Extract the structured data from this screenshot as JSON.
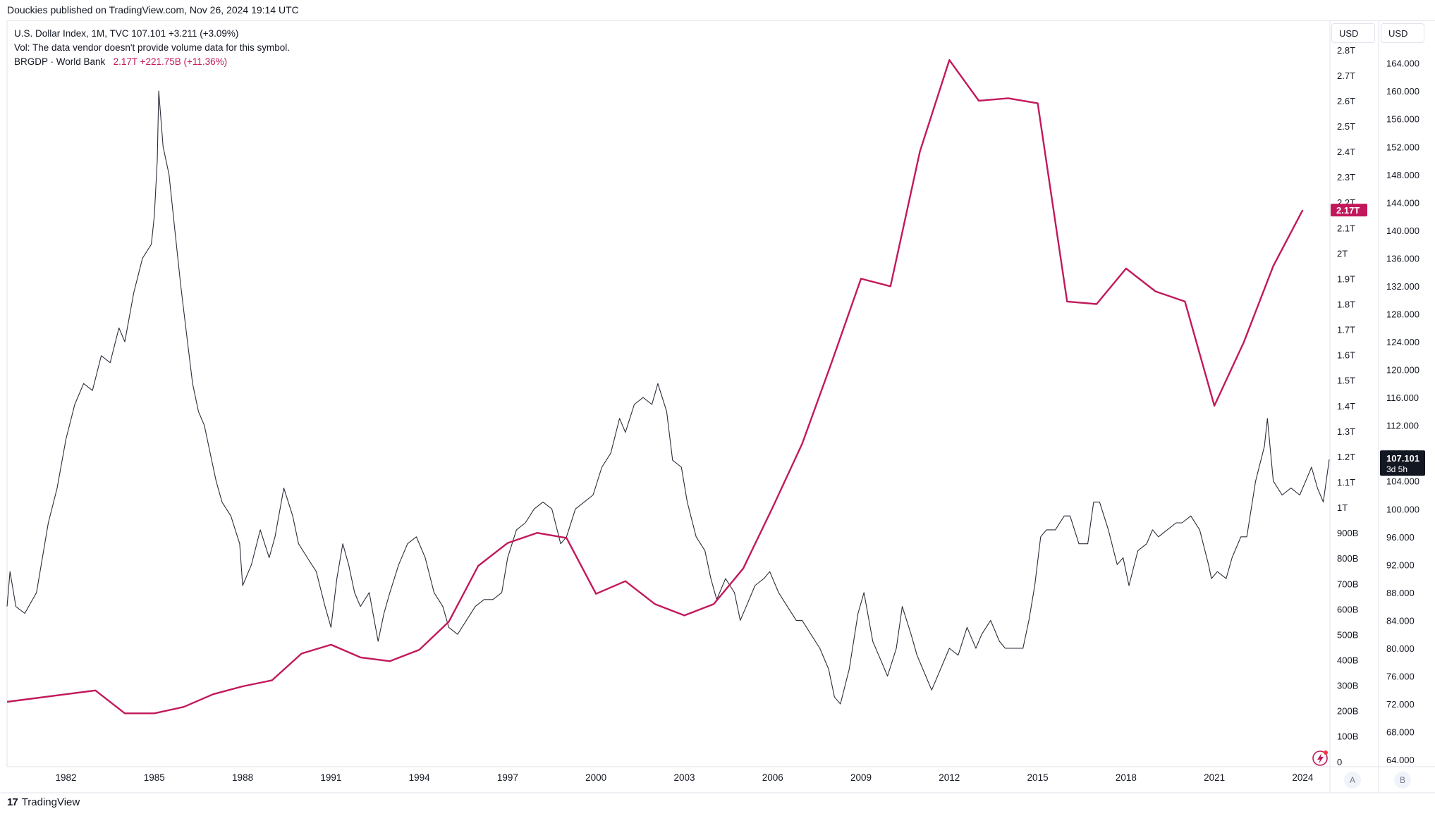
{
  "header": {
    "published": "Douckies published on TradingView.com, Nov 26, 2024 19:14 UTC"
  },
  "legend": {
    "symbol_line": "U.S. Dollar Index, 1M, TVC  107.101  +3.211 (+3.09%)",
    "vol_line": "Vol: The data vendor doesn't provide volume data for this symbol.",
    "brgdp_name": "BRGDP · World Bank",
    "brgdp_values": "2.17T  +221.75B (+11.36%)"
  },
  "axes": {
    "left_currency": "USD",
    "right_currency": "USD",
    "left_ticks": [
      "0",
      "100B",
      "200B",
      "300B",
      "400B",
      "500B",
      "600B",
      "700B",
      "800B",
      "900B",
      "1T",
      "1.1T",
      "1.2T",
      "1.3T",
      "1.4T",
      "1.5T",
      "1.6T",
      "1.7T",
      "1.8T",
      "1.9T",
      "2T",
      "2.1T",
      "2.2T",
      "2.3T",
      "2.4T",
      "2.5T",
      "2.6T",
      "2.7T",
      "2.8T"
    ],
    "right_ticks": [
      "64.000",
      "68.000",
      "72.000",
      "76.000",
      "80.000",
      "84.000",
      "88.000",
      "92.000",
      "96.000",
      "100.000",
      "104.000",
      "108.000",
      "112.000",
      "116.000",
      "120.000",
      "124.000",
      "128.000",
      "132.000",
      "136.000",
      "140.000",
      "144.000",
      "148.000",
      "152.000",
      "156.000",
      "160.000",
      "164.000"
    ],
    "x_ticks": [
      "1982",
      "1985",
      "1988",
      "1991",
      "1994",
      "1997",
      "2000",
      "2003",
      "2006",
      "2009",
      "2012",
      "2015",
      "2018",
      "2021",
      "2024"
    ],
    "scale_buttons": [
      "A",
      "B"
    ]
  },
  "badges": {
    "brgdp_last": "2.17T",
    "dxy_last": "107.101",
    "dxy_countdown": "3d 5h"
  },
  "colors": {
    "brgdp": "#c2185b",
    "dxy": "#2a2e39",
    "badge_dark": "#131722",
    "grid": "#e0e3eb"
  },
  "footer": {
    "brand": "TradingView"
  },
  "chart_data": {
    "type": "line",
    "x_range": [
      1980,
      2024.9
    ],
    "series": [
      {
        "name": "U.S. Dollar Index",
        "axis": "right",
        "ylim": [
          63,
          167
        ],
        "points": [
          [
            1980.0,
            86
          ],
          [
            1980.1,
            91
          ],
          [
            1980.3,
            86
          ],
          [
            1980.6,
            85
          ],
          [
            1981.0,
            88
          ],
          [
            1981.4,
            98
          ],
          [
            1981.7,
            103
          ],
          [
            1982.0,
            110
          ],
          [
            1982.3,
            115
          ],
          [
            1982.6,
            118
          ],
          [
            1982.9,
            117
          ],
          [
            1983.2,
            122
          ],
          [
            1983.5,
            121
          ],
          [
            1983.8,
            126
          ],
          [
            1984.0,
            124
          ],
          [
            1984.3,
            131
          ],
          [
            1984.6,
            136
          ],
          [
            1984.9,
            138
          ],
          [
            1985.0,
            142
          ],
          [
            1985.1,
            150
          ],
          [
            1985.15,
            160
          ],
          [
            1985.3,
            152
          ],
          [
            1985.5,
            148
          ],
          [
            1985.7,
            140
          ],
          [
            1985.9,
            132
          ],
          [
            1986.1,
            125
          ],
          [
            1986.3,
            118
          ],
          [
            1986.5,
            114
          ],
          [
            1986.7,
            112
          ],
          [
            1986.9,
            108
          ],
          [
            1987.1,
            104
          ],
          [
            1987.3,
            101
          ],
          [
            1987.6,
            99
          ],
          [
            1987.9,
            95
          ],
          [
            1988.0,
            89
          ],
          [
            1988.3,
            92
          ],
          [
            1988.6,
            97
          ],
          [
            1988.9,
            93
          ],
          [
            1989.1,
            96
          ],
          [
            1989.4,
            103
          ],
          [
            1989.7,
            99
          ],
          [
            1989.9,
            95
          ],
          [
            1990.2,
            93
          ],
          [
            1990.5,
            91
          ],
          [
            1990.8,
            86
          ],
          [
            1991.0,
            83
          ],
          [
            1991.2,
            90
          ],
          [
            1991.4,
            95
          ],
          [
            1991.6,
            92
          ],
          [
            1991.8,
            88
          ],
          [
            1992.0,
            86
          ],
          [
            1992.3,
            88
          ],
          [
            1992.6,
            81
          ],
          [
            1992.8,
            85
          ],
          [
            1993.0,
            88
          ],
          [
            1993.3,
            92
          ],
          [
            1993.6,
            95
          ],
          [
            1993.9,
            96
          ],
          [
            1994.2,
            93
          ],
          [
            1994.5,
            88
          ],
          [
            1994.8,
            86
          ],
          [
            1995.0,
            83
          ],
          [
            1995.3,
            82
          ],
          [
            1995.6,
            84
          ],
          [
            1995.9,
            86
          ],
          [
            1996.2,
            87
          ],
          [
            1996.5,
            87
          ],
          [
            1996.8,
            88
          ],
          [
            1997.0,
            93
          ],
          [
            1997.3,
            97
          ],
          [
            1997.6,
            98
          ],
          [
            1997.9,
            100
          ],
          [
            1998.2,
            101
          ],
          [
            1998.5,
            100
          ],
          [
            1998.8,
            95
          ],
          [
            1999.0,
            96
          ],
          [
            1999.3,
            100
          ],
          [
            1999.6,
            101
          ],
          [
            1999.9,
            102
          ],
          [
            2000.2,
            106
          ],
          [
            2000.5,
            108
          ],
          [
            2000.8,
            113
          ],
          [
            2001.0,
            111
          ],
          [
            2001.3,
            115
          ],
          [
            2001.6,
            116
          ],
          [
            2001.9,
            115
          ],
          [
            2002.1,
            118
          ],
          [
            2002.4,
            114
          ],
          [
            2002.6,
            107
          ],
          [
            2002.9,
            106
          ],
          [
            2003.1,
            101
          ],
          [
            2003.4,
            96
          ],
          [
            2003.7,
            94
          ],
          [
            2003.9,
            90
          ],
          [
            2004.1,
            87
          ],
          [
            2004.4,
            90
          ],
          [
            2004.7,
            88
          ],
          [
            2004.9,
            84
          ],
          [
            2005.1,
            86
          ],
          [
            2005.4,
            89
          ],
          [
            2005.7,
            90
          ],
          [
            2005.9,
            91
          ],
          [
            2006.2,
            88
          ],
          [
            2006.5,
            86
          ],
          [
            2006.8,
            84
          ],
          [
            2007.0,
            84
          ],
          [
            2007.3,
            82
          ],
          [
            2007.6,
            80
          ],
          [
            2007.9,
            77
          ],
          [
            2008.1,
            73
          ],
          [
            2008.3,
            72
          ],
          [
            2008.6,
            77
          ],
          [
            2008.9,
            85
          ],
          [
            2009.1,
            88
          ],
          [
            2009.4,
            81
          ],
          [
            2009.7,
            78
          ],
          [
            2009.9,
            76
          ],
          [
            2010.2,
            80
          ],
          [
            2010.4,
            86
          ],
          [
            2010.7,
            82
          ],
          [
            2010.9,
            79
          ],
          [
            2011.2,
            76
          ],
          [
            2011.4,
            74
          ],
          [
            2011.7,
            77
          ],
          [
            2012.0,
            80
          ],
          [
            2012.3,
            79
          ],
          [
            2012.6,
            83
          ],
          [
            2012.9,
            80
          ],
          [
            2013.1,
            82
          ],
          [
            2013.4,
            84
          ],
          [
            2013.7,
            81
          ],
          [
            2013.9,
            80
          ],
          [
            2014.2,
            80
          ],
          [
            2014.5,
            80
          ],
          [
            2014.7,
            84
          ],
          [
            2014.9,
            89
          ],
          [
            2015.1,
            96
          ],
          [
            2015.3,
            97
          ],
          [
            2015.6,
            97
          ],
          [
            2015.9,
            99
          ],
          [
            2016.1,
            99
          ],
          [
            2016.4,
            95
          ],
          [
            2016.7,
            95
          ],
          [
            2016.9,
            101
          ],
          [
            2017.1,
            101
          ],
          [
            2017.4,
            97
          ],
          [
            2017.7,
            92
          ],
          [
            2017.9,
            93
          ],
          [
            2018.1,
            89
          ],
          [
            2018.4,
            94
          ],
          [
            2018.7,
            95
          ],
          [
            2018.9,
            97
          ],
          [
            2019.1,
            96
          ],
          [
            2019.4,
            97
          ],
          [
            2019.7,
            98
          ],
          [
            2019.9,
            98
          ],
          [
            2020.2,
            99
          ],
          [
            2020.5,
            97
          ],
          [
            2020.8,
            92
          ],
          [
            2020.9,
            90
          ],
          [
            2021.1,
            91
          ],
          [
            2021.4,
            90
          ],
          [
            2021.6,
            93
          ],
          [
            2021.9,
            96
          ],
          [
            2022.1,
            96
          ],
          [
            2022.4,
            104
          ],
          [
            2022.7,
            109
          ],
          [
            2022.8,
            113
          ],
          [
            2023.0,
            104
          ],
          [
            2023.3,
            102
          ],
          [
            2023.6,
            103
          ],
          [
            2023.9,
            102
          ],
          [
            2024.1,
            104
          ],
          [
            2024.3,
            106
          ],
          [
            2024.5,
            103
          ],
          [
            2024.7,
            101
          ],
          [
            2024.9,
            107.1
          ]
        ]
      },
      {
        "name": "BRGDP · World Bank",
        "axis": "left",
        "ylim": [
          -20,
          2830
        ],
        "points": [
          [
            1980,
            235
          ],
          [
            1982,
            265
          ],
          [
            1983,
            280
          ],
          [
            1984,
            190
          ],
          [
            1985,
            190
          ],
          [
            1986,
            215
          ],
          [
            1987,
            265
          ],
          [
            1988,
            296
          ],
          [
            1989,
            320
          ],
          [
            1990,
            425
          ],
          [
            1991,
            460
          ],
          [
            1992,
            410
          ],
          [
            1993,
            395
          ],
          [
            1994,
            440
          ],
          [
            1995,
            550
          ],
          [
            1996,
            770
          ],
          [
            1997,
            860
          ],
          [
            1998,
            900
          ],
          [
            1999,
            880
          ],
          [
            2000,
            660
          ],
          [
            2001,
            710
          ],
          [
            2002,
            620
          ],
          [
            2003,
            575
          ],
          [
            2004,
            620
          ],
          [
            2005,
            760
          ],
          [
            2006,
            1000
          ],
          [
            2007,
            1250
          ],
          [
            2008,
            1570
          ],
          [
            2009,
            1900
          ],
          [
            2010,
            1870
          ],
          [
            2011,
            2400
          ],
          [
            2012,
            2760
          ],
          [
            2013,
            2600
          ],
          [
            2014,
            2610
          ],
          [
            2015,
            2590
          ],
          [
            2016,
            1810
          ],
          [
            2017,
            1800
          ],
          [
            2018,
            1940
          ],
          [
            2019,
            1850
          ],
          [
            2020,
            1810
          ],
          [
            2021,
            1400
          ],
          [
            2022,
            1650
          ],
          [
            2023,
            1950
          ],
          [
            2024,
            2170
          ]
        ]
      }
    ]
  }
}
